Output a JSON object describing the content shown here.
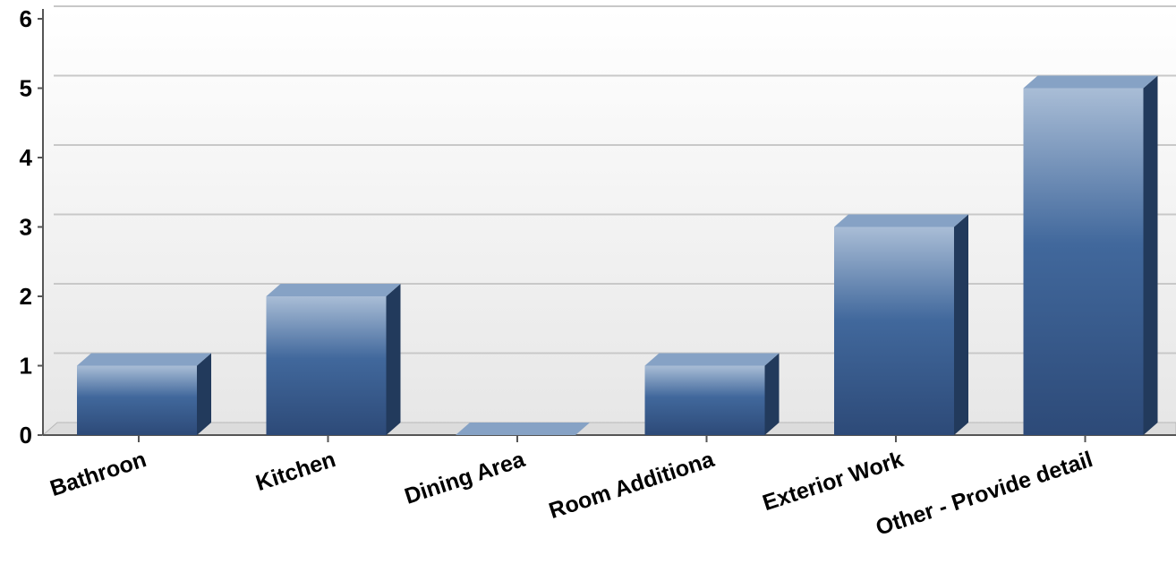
{
  "chart_data": {
    "type": "bar",
    "title": "",
    "xlabel": "",
    "ylabel": "",
    "categories": [
      "Bathroon",
      "Kitchen",
      "Dining Area",
      "Room Additiona",
      "Exterior Work",
      "Other - Provide detail"
    ],
    "values": [
      1,
      2,
      0,
      1,
      3,
      5
    ],
    "ylim": [
      0,
      6
    ],
    "yticks": [
      "0",
      "1",
      "2",
      "3",
      "4",
      "5",
      "6"
    ],
    "grid": true,
    "legend": "none",
    "style": "3d",
    "colors": {
      "bar_top": "#a9bdd6",
      "bar_mid": "#41689c",
      "bar_bottom": "#2d4a78",
      "bar_side": "#223a5c",
      "bar_cap": "#86a2c5",
      "grid": "#c8c8c8",
      "axis": "#555555",
      "background_top": "#ffffff",
      "background_bottom": "#e6e6e6"
    }
  }
}
